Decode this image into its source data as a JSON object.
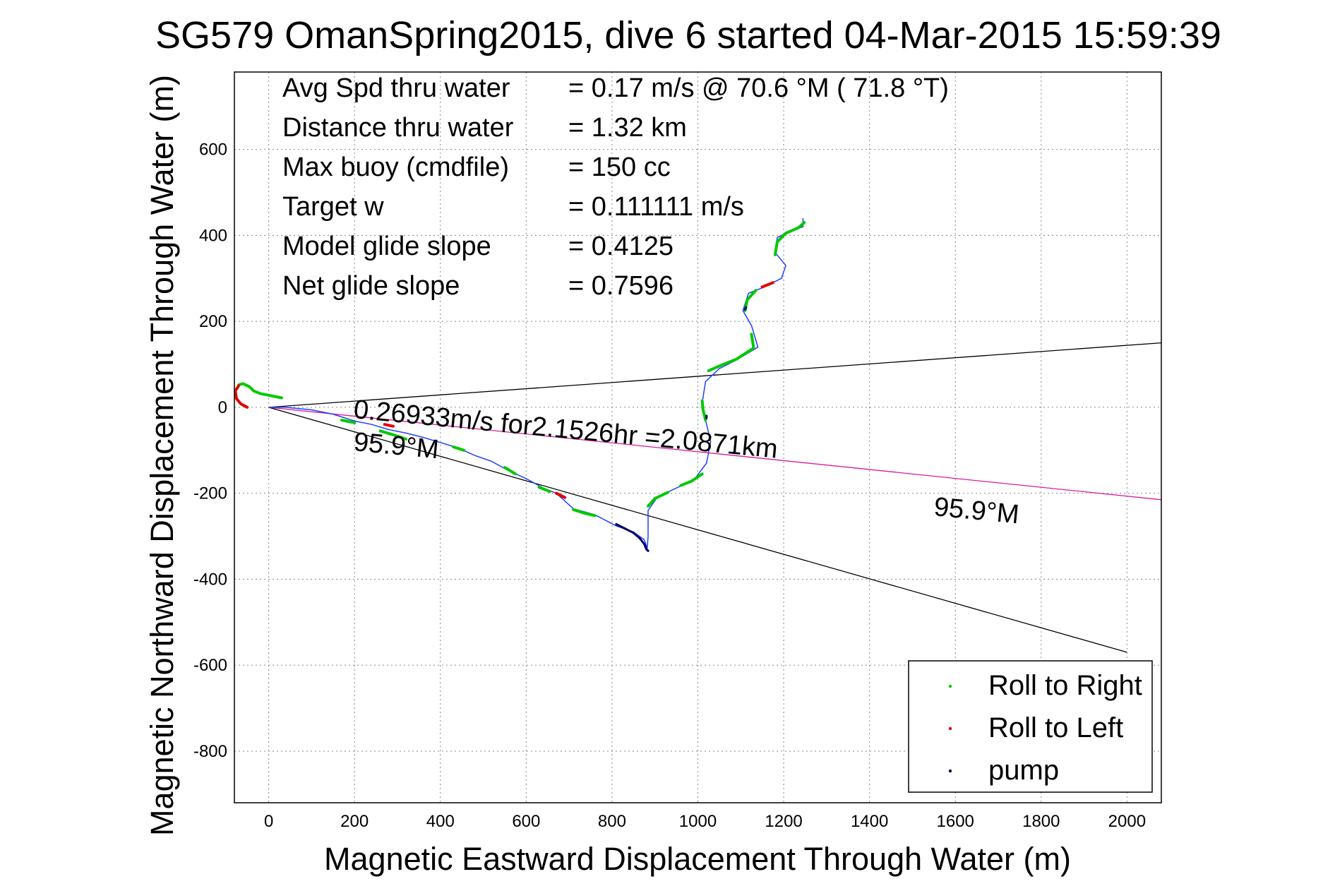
{
  "chart_data": {
    "type": "scatter",
    "title": "SG579 OmanSpring2015, dive 6 started 04-Mar-2015 15:59:39",
    "xlabel": "Magnetic Eastward Displacement Through Water (m)",
    "ylabel": "Magnetic Northward Displacement Through Water (m)",
    "xlim": [
      -80,
      2080
    ],
    "ylim": [
      -920,
      780
    ],
    "xticks": [
      0,
      200,
      400,
      600,
      800,
      1000,
      1200,
      1400,
      1600,
      1800,
      2000
    ],
    "yticks": [
      -800,
      -600,
      -400,
      -200,
      0,
      200,
      400,
      600
    ],
    "grid": true,
    "info_lines": [
      {
        "label": "Avg Spd thru water",
        "value": "=  0.17 m/s @  70.6 °M ( 71.8 °T)"
      },
      {
        "label": "Distance thru water",
        "value": "=  1.32 km"
      },
      {
        "label": "Max buoy (cmdfile)",
        "value": "= 150 cc"
      },
      {
        "label": "Target w",
        "value": "= 0.111111 m/s"
      },
      {
        "label": "Model glide slope",
        "value": "= 0.4125"
      },
      {
        "label": "Net glide slope",
        "value": "= 0.7596"
      }
    ],
    "annotations": {
      "current_text": "0.26933m/s for2.1526hr =2.0871km",
      "heading_near": "95.9°M",
      "heading_far": "95.9°M"
    },
    "reference_lines": [
      {
        "name": "upper_bound",
        "color": "#000000",
        "points": [
          [
            0,
            0
          ],
          [
            2080,
            150
          ]
        ]
      },
      {
        "name": "lower_bound",
        "color": "#000000",
        "points": [
          [
            0,
            0
          ],
          [
            2000,
            -570
          ]
        ]
      },
      {
        "name": "current",
        "color": "#d81b9b",
        "points": [
          [
            0,
            0
          ],
          [
            2080,
            -215
          ]
        ]
      }
    ],
    "legend": {
      "placement": "bottom-right",
      "entries": [
        {
          "label": "Roll to Right",
          "color": "#00c800"
        },
        {
          "label": "Roll to Left",
          "color": "#e00000"
        },
        {
          "label": "pump",
          "color": "#000060"
        }
      ]
    },
    "track": {
      "color": "#2040ff",
      "points": [
        [
          0,
          0
        ],
        [
          40,
          0
        ],
        [
          100,
          -6
        ],
        [
          150,
          -16
        ],
        [
          200,
          -32
        ],
        [
          240,
          -40
        ],
        [
          280,
          -52
        ],
        [
          320,
          -60
        ],
        [
          360,
          -70
        ],
        [
          400,
          -82
        ],
        [
          440,
          -94
        ],
        [
          480,
          -112
        ],
        [
          520,
          -126
        ],
        [
          560,
          -148
        ],
        [
          600,
          -166
        ],
        [
          640,
          -188
        ],
        [
          670,
          -200
        ],
        [
          710,
          -236
        ],
        [
          760,
          -250
        ],
        [
          810,
          -276
        ],
        [
          850,
          -290
        ],
        [
          875,
          -308
        ],
        [
          882,
          -328
        ],
        [
          884,
          -300
        ],
        [
          884,
          -240
        ],
        [
          905,
          -210
        ],
        [
          945,
          -190
        ],
        [
          990,
          -170
        ],
        [
          1020,
          -130
        ],
        [
          1030,
          -80
        ],
        [
          1018,
          -30
        ],
        [
          1010,
          10
        ],
        [
          1018,
          60
        ],
        [
          1050,
          90
        ],
        [
          1090,
          110
        ],
        [
          1140,
          140
        ],
        [
          1125,
          190
        ],
        [
          1105,
          225
        ],
        [
          1118,
          265
        ],
        [
          1155,
          280
        ],
        [
          1195,
          300
        ],
        [
          1205,
          330
        ],
        [
          1180,
          360
        ],
        [
          1185,
          395
        ],
        [
          1215,
          410
        ],
        [
          1245,
          420
        ],
        [
          1245,
          440
        ]
      ]
    },
    "segments": [
      {
        "series": "Roll to Right",
        "points": [
          [
            -70,
            52
          ],
          [
            -60,
            55
          ],
          [
            -45,
            48
          ],
          [
            -35,
            38
          ],
          [
            -20,
            32
          ],
          [
            10,
            26
          ],
          [
            30,
            22
          ]
        ]
      },
      {
        "series": "Roll to Right",
        "points": [
          [
            170,
            -30
          ],
          [
            200,
            -36
          ]
        ]
      },
      {
        "series": "Roll to Right",
        "points": [
          [
            260,
            -55
          ],
          [
            290,
            -64
          ],
          [
            320,
            -74
          ]
        ]
      },
      {
        "series": "Roll to Right",
        "points": [
          [
            430,
            -92
          ],
          [
            455,
            -100
          ]
        ]
      },
      {
        "series": "Roll to Right",
        "points": [
          [
            550,
            -140
          ],
          [
            575,
            -155
          ]
        ]
      },
      {
        "series": "Roll to Right",
        "points": [
          [
            630,
            -186
          ],
          [
            655,
            -196
          ]
        ]
      },
      {
        "series": "Roll to Right",
        "points": [
          [
            710,
            -238
          ],
          [
            735,
            -246
          ],
          [
            760,
            -252
          ]
        ]
      },
      {
        "series": "Roll to Right",
        "points": [
          [
            884,
            -230
          ],
          [
            900,
            -212
          ],
          [
            930,
            -198
          ]
        ]
      },
      {
        "series": "Roll to Right",
        "points": [
          [
            960,
            -182
          ],
          [
            985,
            -172
          ],
          [
            1010,
            -155
          ]
        ]
      },
      {
        "series": "Roll to Right",
        "points": [
          [
            1018,
            -30
          ],
          [
            1012,
            -5
          ],
          [
            1010,
            15
          ]
        ]
      },
      {
        "series": "Roll to Right",
        "points": [
          [
            1025,
            85
          ],
          [
            1055,
            98
          ],
          [
            1090,
            112
          ],
          [
            1130,
            138
          ],
          [
            1125,
            170
          ]
        ]
      },
      {
        "series": "Roll to Right",
        "points": [
          [
            1110,
            225
          ],
          [
            1115,
            250
          ],
          [
            1135,
            272
          ]
        ]
      },
      {
        "series": "Roll to Right",
        "points": [
          [
            1180,
            355
          ],
          [
            1185,
            385
          ],
          [
            1205,
            405
          ],
          [
            1235,
            418
          ],
          [
            1248,
            430
          ]
        ]
      },
      {
        "series": "Roll to Left",
        "points": [
          [
            -70,
            50
          ],
          [
            -78,
            38
          ],
          [
            -75,
            20
          ],
          [
            -65,
            8
          ],
          [
            -50,
            0
          ]
        ]
      },
      {
        "series": "Roll to Left",
        "points": [
          [
            270,
            -40
          ],
          [
            290,
            -44
          ]
        ]
      },
      {
        "series": "Roll to Left",
        "points": [
          [
            670,
            -200
          ],
          [
            690,
            -210
          ]
        ]
      },
      {
        "series": "Roll to Left",
        "points": [
          [
            1150,
            280
          ],
          [
            1175,
            290
          ]
        ]
      },
      {
        "series": "pump",
        "points": [
          [
            810,
            -272
          ],
          [
            830,
            -282
          ],
          [
            850,
            -292
          ],
          [
            865,
            -305
          ],
          [
            875,
            -318
          ],
          [
            880,
            -330
          ],
          [
            884,
            -334
          ]
        ]
      },
      {
        "series": "pump",
        "points": [
          [
            1020,
            -20
          ],
          [
            1020,
            -25
          ]
        ]
      },
      {
        "series": "pump",
        "points": [
          [
            1110,
            228
          ],
          [
            1112,
            232
          ]
        ]
      }
    ]
  }
}
